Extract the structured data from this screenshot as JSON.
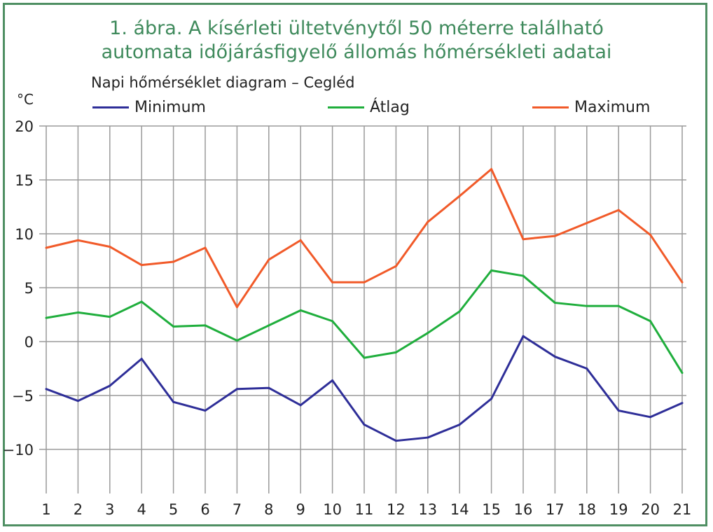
{
  "title_line1": "1. ábra. A kísérleti ültetvénytől 50 méterre található",
  "title_line2": "automata időjárásfigyelő állomás hőmérsékleti adatai",
  "chart_data": {
    "type": "line",
    "title": "Napi hőmérséklet diagram – Cegléd",
    "ylabel": "°C",
    "xlabel": "",
    "x": [
      1,
      2,
      3,
      4,
      5,
      6,
      7,
      8,
      9,
      10,
      11,
      12,
      13,
      14,
      15,
      16,
      17,
      18,
      19,
      20,
      21
    ],
    "ylim": [
      -14,
      20
    ],
    "yticks": [
      20,
      15,
      10,
      5,
      0,
      -5,
      -10
    ],
    "ytick_labels": [
      "20",
      "15",
      "10",
      "5",
      "0",
      "−5",
      "−10"
    ],
    "grid": true,
    "legend_placement": "top",
    "series": [
      {
        "name": "Minimum",
        "color": "#2e2e98",
        "values": [
          -4.4,
          -5.5,
          -4.1,
          -1.6,
          -5.6,
          -6.4,
          -4.4,
          -4.3,
          -5.9,
          -3.6,
          -7.7,
          -9.2,
          -8.9,
          -7.7,
          -5.3,
          0.5,
          -1.4,
          -2.5,
          -6.4,
          -7.0,
          -5.7
        ]
      },
      {
        "name": "Átlag",
        "color": "#1fae3c",
        "values": [
          2.2,
          2.7,
          2.3,
          3.7,
          1.4,
          1.5,
          0.1,
          1.5,
          2.9,
          1.9,
          -1.5,
          -1.0,
          0.8,
          2.8,
          6.6,
          6.1,
          3.6,
          3.3,
          3.3,
          1.9,
          -2.9
        ]
      },
      {
        "name": "Maximum",
        "color": "#f15a29",
        "values": [
          8.7,
          9.4,
          8.8,
          7.1,
          7.4,
          8.7,
          3.2,
          7.6,
          9.4,
          5.5,
          5.5,
          7.0,
          11.1,
          13.5,
          16.0,
          9.5,
          9.8,
          11.0,
          12.2,
          9.9,
          5.5
        ]
      }
    ]
  }
}
